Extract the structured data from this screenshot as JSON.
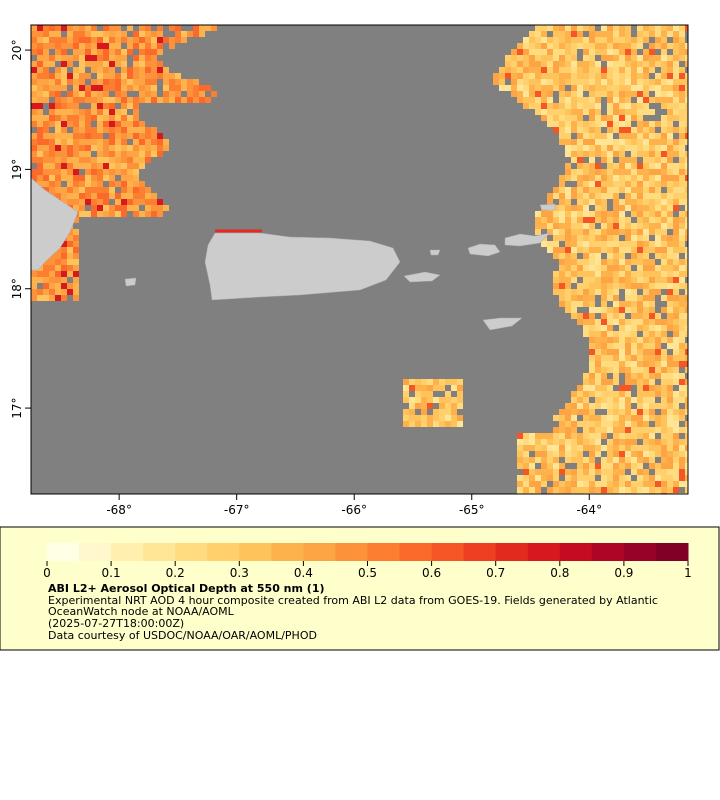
{
  "map": {
    "type": "map",
    "xlim": [
      -68.75,
      -63.16
    ],
    "ylim": [
      16.28,
      20.21
    ],
    "xticks": [
      {
        "value": -68,
        "label": "-68°"
      },
      {
        "value": -67,
        "label": "-67°"
      },
      {
        "value": -66,
        "label": "-66°"
      },
      {
        "value": -65,
        "label": "-65°"
      },
      {
        "value": -64,
        "label": "-64°"
      }
    ],
    "yticks": [
      {
        "value": 17,
        "label": "17°"
      },
      {
        "value": 18,
        "label": "18°"
      },
      {
        "value": 19,
        "label": "19°"
      },
      {
        "value": 20,
        "label": "20°"
      }
    ]
  },
  "colorbar": {
    "range": [
      0,
      1
    ],
    "ticks": [
      0,
      0.1,
      0.2,
      0.3,
      0.4,
      0.5,
      0.6,
      0.7,
      0.8,
      0.9,
      1
    ],
    "colors": [
      "#ffffe5",
      "#fff8cc",
      "#fff0b0",
      "#ffe697",
      "#ffdc80",
      "#ffd06c",
      "#ffc35c",
      "#feb24c",
      "#fda444",
      "#fc9239",
      "#fc7f31",
      "#fb6a2a",
      "#f65526",
      "#ee3f22",
      "#e32a1f",
      "#d6191f",
      "#c40b22",
      "#ae0526",
      "#960228",
      "#800026"
    ]
  },
  "legend": {
    "title": "ABI L2+ Aerosol Optical Depth at 550 nm (1)",
    "lines": [
      "Experimental NRT AOD 4 hour composite created from ABI L2 data from GOES-19. Fields generated by Atlantic OceanWatch node at NOAA/AOML",
      "(2025-07-27T18:00:00Z)",
      "Data courtesy of USDOC/NOAA/OAR/AOML/PHOD"
    ]
  }
}
